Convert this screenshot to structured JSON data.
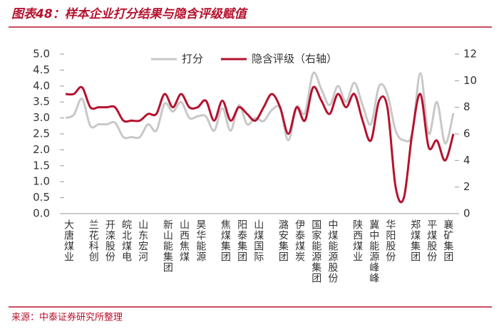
{
  "chart_data": {
    "type": "line",
    "title": "图表48：样本企业打分结果与隐含评级赋值",
    "source": "来源：中泰证券研究所整理",
    "categories": [
      "大唐煤业",
      null,
      null,
      "兰花科创",
      null,
      "开滦股份",
      null,
      "皖北煤电",
      null,
      "山东宏河",
      null,
      null,
      "新山能集团",
      null,
      "山西焦煤",
      null,
      "昊华能源",
      null,
      null,
      "焦煤集团",
      null,
      "阳泰集团",
      null,
      "山煤国际",
      null,
      null,
      "潞安集团",
      null,
      "伊泰煤炭",
      null,
      "国家能源集团",
      null,
      "中煤能源股份",
      null,
      null,
      "陕西煤业",
      null,
      "冀中能源峰峰",
      null,
      "华阳股份",
      null,
      null,
      "郑煤集团",
      null,
      "平煤股份",
      null,
      "襄矿集团",
      null
    ],
    "series": [
      {
        "name": "打分",
        "color": "#c8c8c8",
        "axis": "y",
        "values": [
          3.0,
          3.1,
          3.6,
          2.75,
          2.8,
          2.8,
          2.85,
          2.4,
          2.4,
          2.4,
          2.8,
          2.6,
          3.45,
          3.2,
          3.5,
          3.0,
          3.05,
          3.05,
          2.6,
          3.3,
          2.6,
          3.4,
          2.8,
          3.0,
          2.9,
          3.25,
          3.3,
          2.3,
          3.35,
          3.15,
          4.4,
          3.9,
          3.4,
          4.0,
          3.5,
          4.1,
          3.4,
          2.8,
          4.0,
          3.75,
          2.6,
          2.3,
          2.5,
          4.4,
          2.5,
          3.5,
          2.2,
          3.15
        ]
      },
      {
        "name": "隐含评级（右轴）",
        "color": "#b5122e",
        "axis": "y2",
        "values": [
          9,
          9,
          9.5,
          8,
          8,
          8,
          8,
          7,
          7,
          7,
          7.5,
          7.5,
          9,
          8,
          9,
          8,
          8,
          8.5,
          7,
          8.5,
          7,
          8,
          7.5,
          7,
          8,
          9,
          8,
          6,
          8,
          7,
          9.5,
          8.5,
          7.5,
          9,
          8,
          9,
          7,
          5.5,
          8.5,
          8,
          2,
          1.2,
          6,
          9,
          5,
          5.5,
          4,
          6
        ]
      }
    ],
    "ylim": [
      0,
      5
    ],
    "yticks": [
      {
        "value": 0,
        "label": "0.0"
      },
      0.5,
      {
        "value": 1,
        "label": "1.0"
      },
      1.5,
      {
        "value": 2,
        "label": "2.0"
      },
      2.5,
      {
        "value": 3,
        "label": "3.0"
      },
      3.5,
      {
        "value": 4,
        "label": "4.0"
      },
      4.5,
      {
        "value": 5,
        "label": "5.0"
      }
    ],
    "y2lim": [
      0,
      12
    ],
    "y2ticks": [
      0,
      2,
      4,
      6,
      8,
      10,
      12
    ],
    "legend": "top"
  }
}
